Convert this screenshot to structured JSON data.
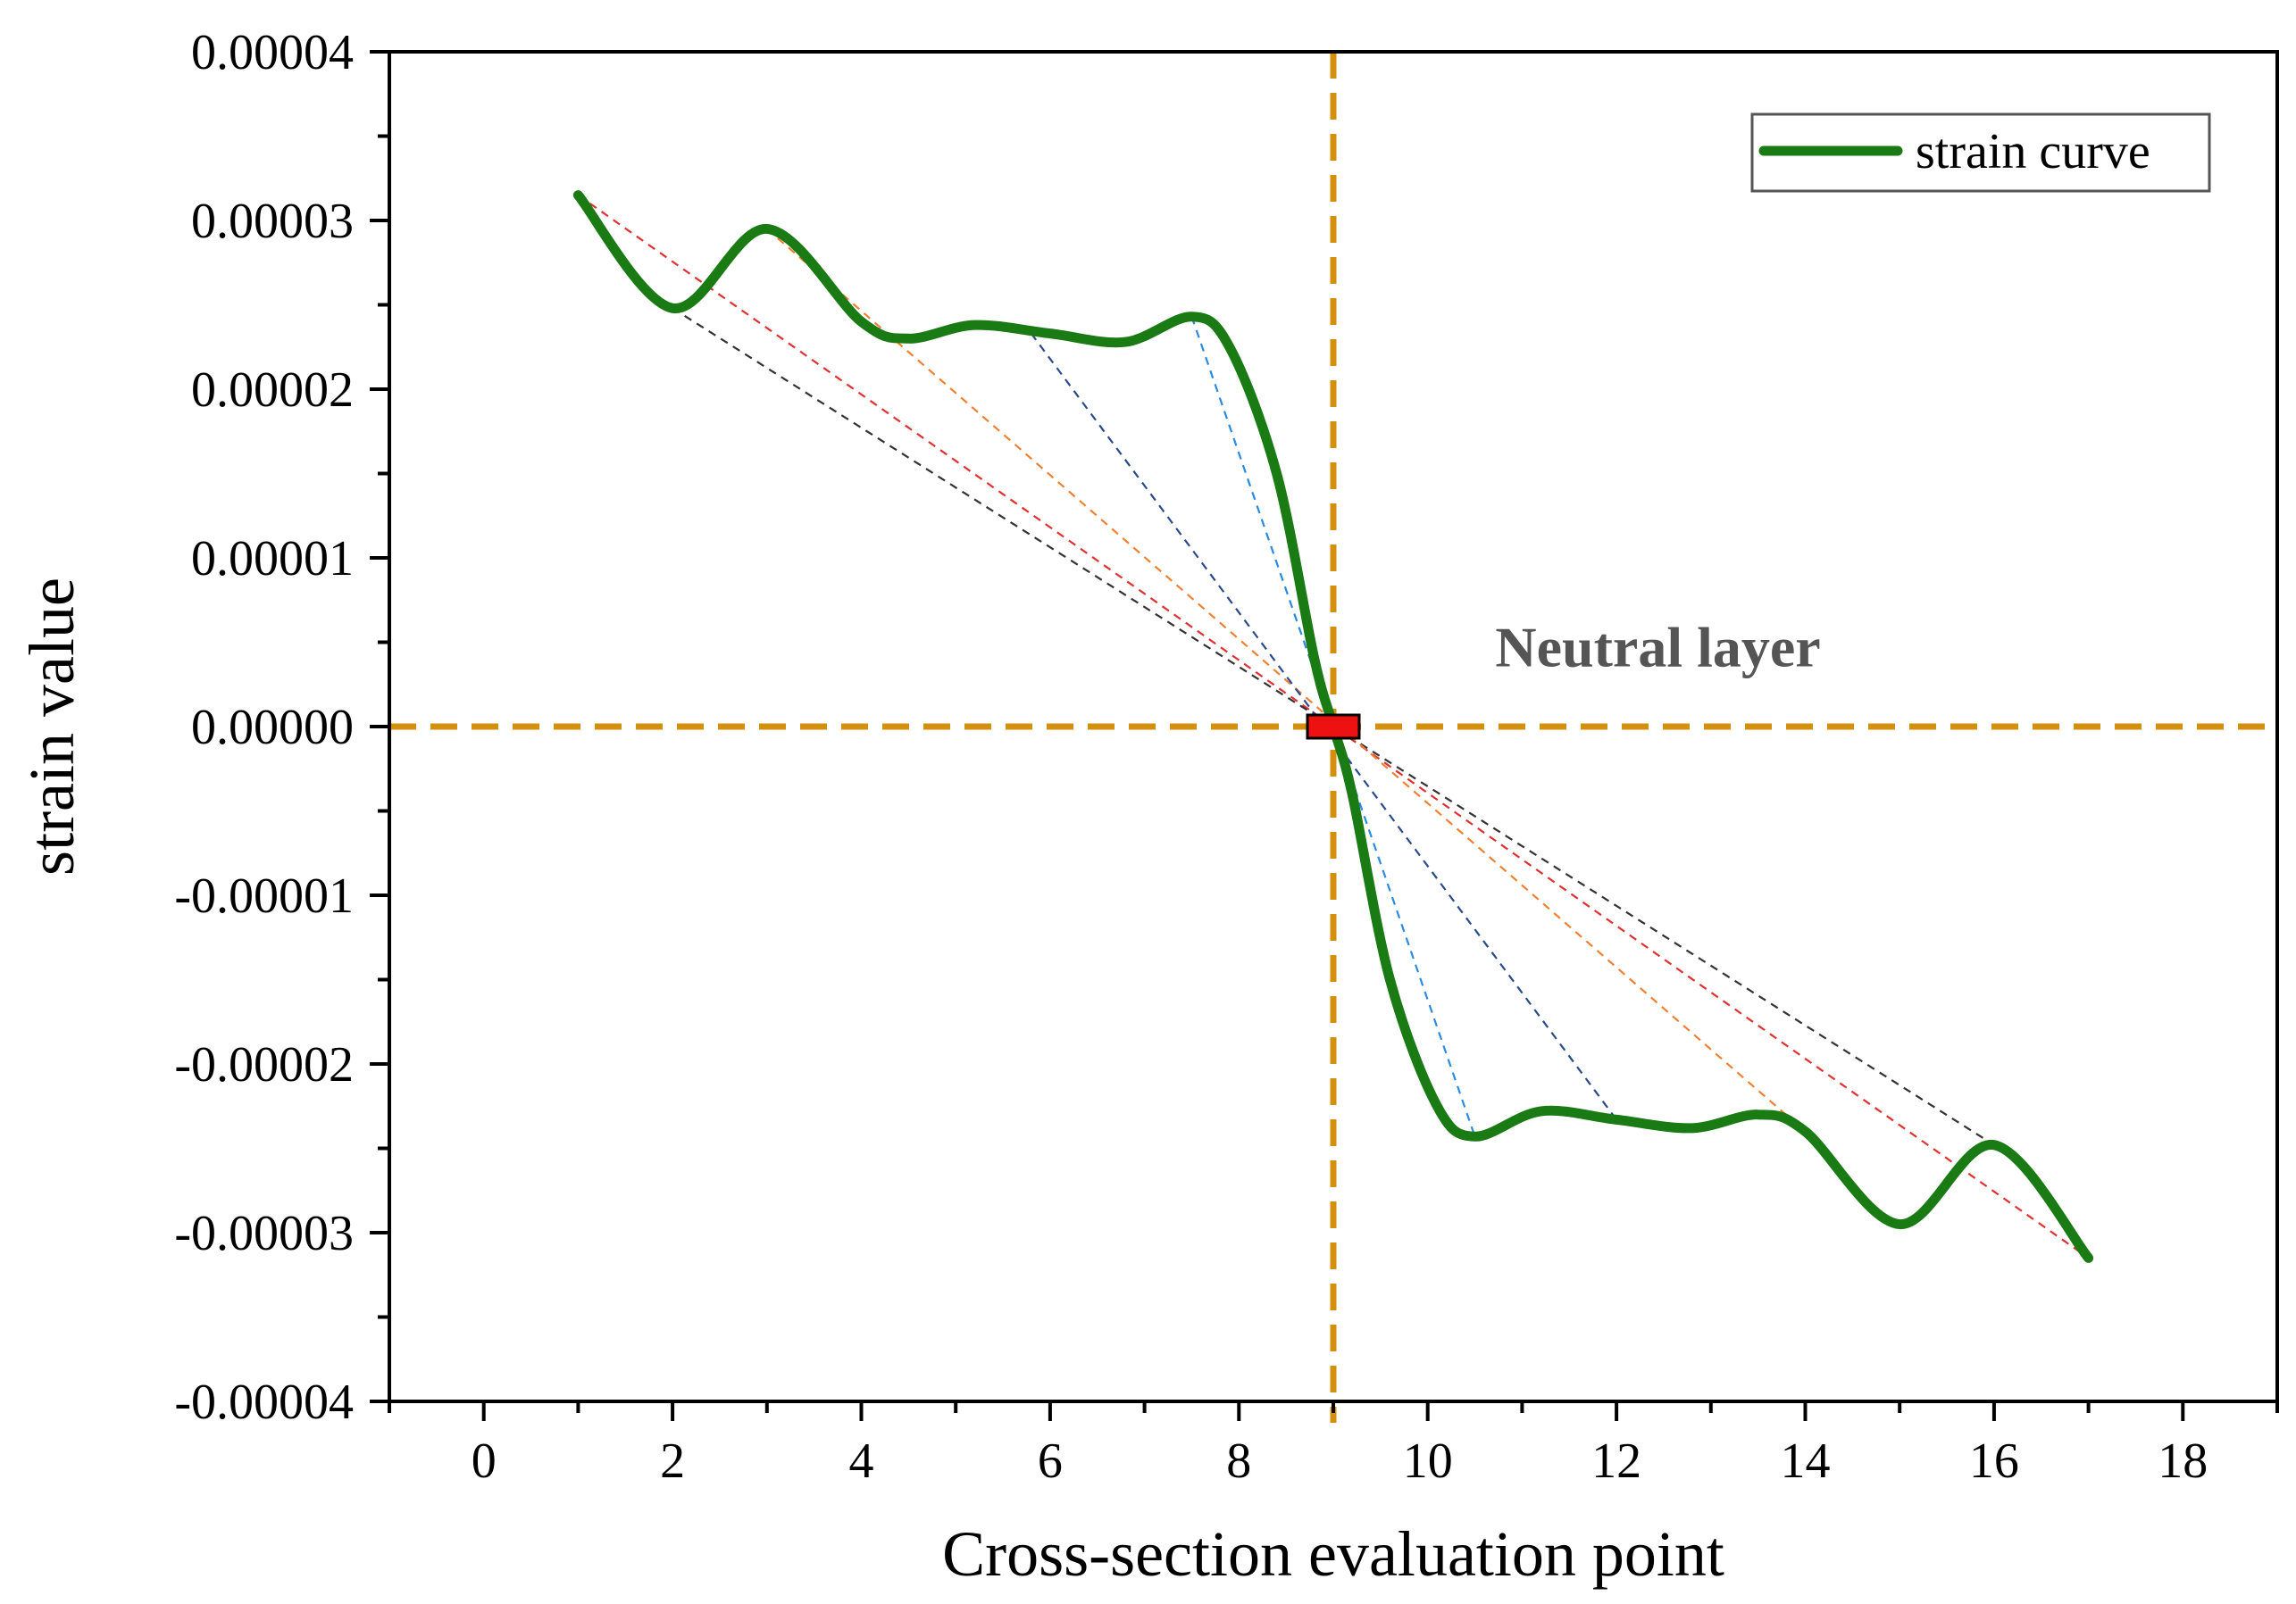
{
  "chart_data": {
    "type": "line",
    "title": "",
    "xlabel": "Cross-section evaluation point",
    "ylabel": "strain value",
    "xlim": [
      -1,
      19
    ],
    "ylim": [
      -4e-05,
      4e-05
    ],
    "x_ticks": [
      0,
      2,
      4,
      6,
      8,
      10,
      12,
      14,
      16,
      18
    ],
    "x_tick_labels": [
      "0",
      "2",
      "4",
      "6",
      "8",
      "10",
      "12",
      "14",
      "16",
      "18"
    ],
    "y_ticks": [
      -4e-05,
      -3e-05,
      -2e-05,
      -1e-05,
      0,
      1e-05,
      2e-05,
      3e-05,
      4e-05
    ],
    "y_tick_labels": [
      "-0.00004",
      "-0.00003",
      "-0.00002",
      "-0.00001",
      "0.00000",
      "0.00001",
      "0.00002",
      "0.00003",
      "0.00004"
    ],
    "grid": false,
    "legend_position": "top-right",
    "series": [
      {
        "name": "strain curve",
        "color": "#1a7a14",
        "x": [
          1,
          2,
          3,
          4,
          4.5,
          5.2,
          6,
          6.8,
          7.5,
          7.9,
          8.4,
          8.8,
          9.0,
          9.2,
          9.6,
          10.1,
          10.5,
          11.2,
          12,
          12.8,
          13.5,
          14,
          15,
          16,
          17
        ],
        "y": [
          3.15e-05,
          2.48e-05,
          2.95e-05,
          2.4e-05,
          2.3e-05,
          2.38e-05,
          2.33e-05,
          2.28e-05,
          2.43e-05,
          2.25e-05,
          1.5e-05,
          4e-06,
          0.0,
          -4e-06,
          -1.5e-05,
          -2.25e-05,
          -2.43e-05,
          -2.28e-05,
          -2.33e-05,
          -2.38e-05,
          -2.3e-05,
          -2.4e-05,
          -2.95e-05,
          -2.48e-05,
          -3.15e-05
        ]
      }
    ],
    "reference_lines": [
      {
        "orientation": "vertical",
        "value": 9,
        "color": "#d4900c",
        "style": "dashed"
      },
      {
        "orientation": "horizontal",
        "value": 0,
        "color": "#d4900c",
        "style": "dashed"
      }
    ],
    "guide_lines": [
      {
        "color": "#e03030",
        "from": [
          1,
          3.15e-05
        ],
        "to": [
          17,
          -3.15e-05
        ]
      },
      {
        "color": "#333333",
        "from": [
          2,
          2.48e-05
        ],
        "to": [
          16,
          -2.48e-05
        ]
      },
      {
        "color": "#f08030",
        "from": [
          3,
          2.95e-05
        ],
        "to": [
          14,
          -2.4e-05
        ]
      },
      {
        "color": "#2a4a8a",
        "from": [
          5.8,
          2.33e-05
        ],
        "to": [
          12,
          -2.33e-05
        ]
      },
      {
        "color": "#2a8ae0",
        "from": [
          7.5,
          2.43e-05
        ],
        "to": [
          10.5,
          -2.43e-05
        ]
      }
    ],
    "marker": {
      "x": 9,
      "y": 0,
      "color": "#ee1111",
      "shape": "rectangle"
    },
    "annotations": [
      {
        "text": "Neutral layer",
        "x": 11.0,
        "y": 4e-06
      }
    ],
    "colors": {
      "axis": "#000000",
      "curve": "#1a7a14",
      "reference": "#d4900c"
    }
  }
}
